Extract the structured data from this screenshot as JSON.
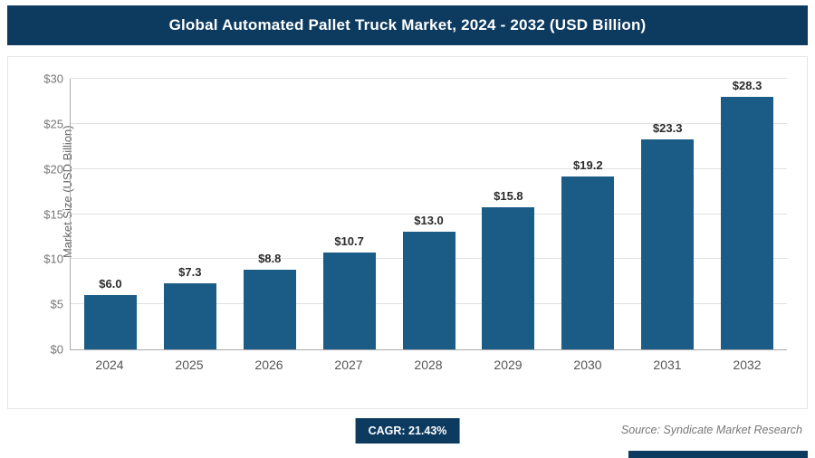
{
  "header": {
    "title": "Global Automated Pallet Truck Market, 2024 - 2032 (USD Billion)"
  },
  "chart_data": {
    "type": "bar",
    "title": "Global Automated Pallet Truck Market, 2024 - 2032 (USD Billion)",
    "categories": [
      "2024",
      "2025",
      "2026",
      "2027",
      "2028",
      "2029",
      "2030",
      "2031",
      "2032"
    ],
    "values": [
      6.0,
      7.3,
      8.8,
      10.7,
      13.0,
      15.8,
      19.2,
      23.3,
      28.3
    ],
    "value_labels": [
      "$6.0",
      "$7.3",
      "$8.8",
      "$10.7",
      "$13.0",
      "$15.8",
      "$19.2",
      "$23.3",
      "$28.3"
    ],
    "xlabel": "",
    "ylabel": "Market Size (USD Billion)",
    "ylim": [
      0,
      30
    ],
    "ytick_step": 5,
    "yticks": [
      "$0",
      "$5",
      "$10",
      "$15",
      "$20",
      "$25",
      "$30"
    ],
    "grid": true,
    "legend": false
  },
  "footer": {
    "cagr_label": "CAGR: 21.43%",
    "source": "Source: Syndicate Market Research"
  },
  "colors": {
    "header_bg": "#0d3a5f",
    "bar": "#1a5c85",
    "badge_bg": "#0d3a5f",
    "gridline": "#e0e0e0"
  }
}
